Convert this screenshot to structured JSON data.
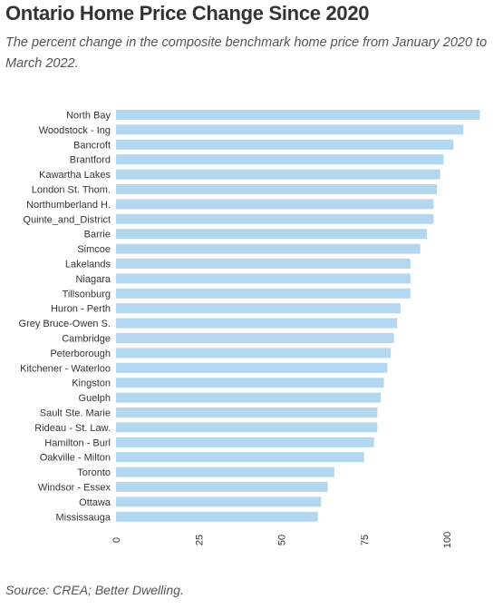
{
  "title": "Ontario Home Price Change Since 2020",
  "subtitle": "The percent change in the composite benchmark home price from January 2020 to March 2022.",
  "source": "Source: CREA; Better Dwelling.",
  "chart_data": {
    "type": "bar",
    "orientation": "horizontal",
    "categories": [
      "North Bay",
      "Woodstock - Ing",
      "Bancroft",
      "Brantford",
      "Kawartha Lakes",
      "London St. Thom.",
      "Northumberland H.",
      "Quinte_and_District",
      "Barrie",
      "Simcoe",
      "Lakelands",
      "Niagara",
      "Tillsonburg",
      "Huron - Perth",
      "Grey Bruce-Owen S.",
      "Cambridge",
      "Peterborough",
      "Kitchener - Waterloo",
      "Kingston",
      "Guelph",
      "Sault Ste. Marie",
      "Rideau - St. Law.",
      "Hamilton - Burl",
      "Oakville - Milton",
      "Toronto",
      "Windsor - Essex",
      "Ottawa",
      "Mississauga"
    ],
    "values": [
      110,
      105,
      102,
      99,
      98,
      97,
      96,
      96,
      94,
      92,
      89,
      89,
      89,
      86,
      85,
      84,
      83,
      82,
      81,
      80,
      79,
      79,
      78,
      75,
      66,
      64,
      62,
      61
    ],
    "xticks": [
      "0",
      "25",
      "50",
      "75",
      "100"
    ],
    "xlim": [
      0,
      110
    ],
    "bar_color": "#b3d7ee",
    "grid": false
  }
}
